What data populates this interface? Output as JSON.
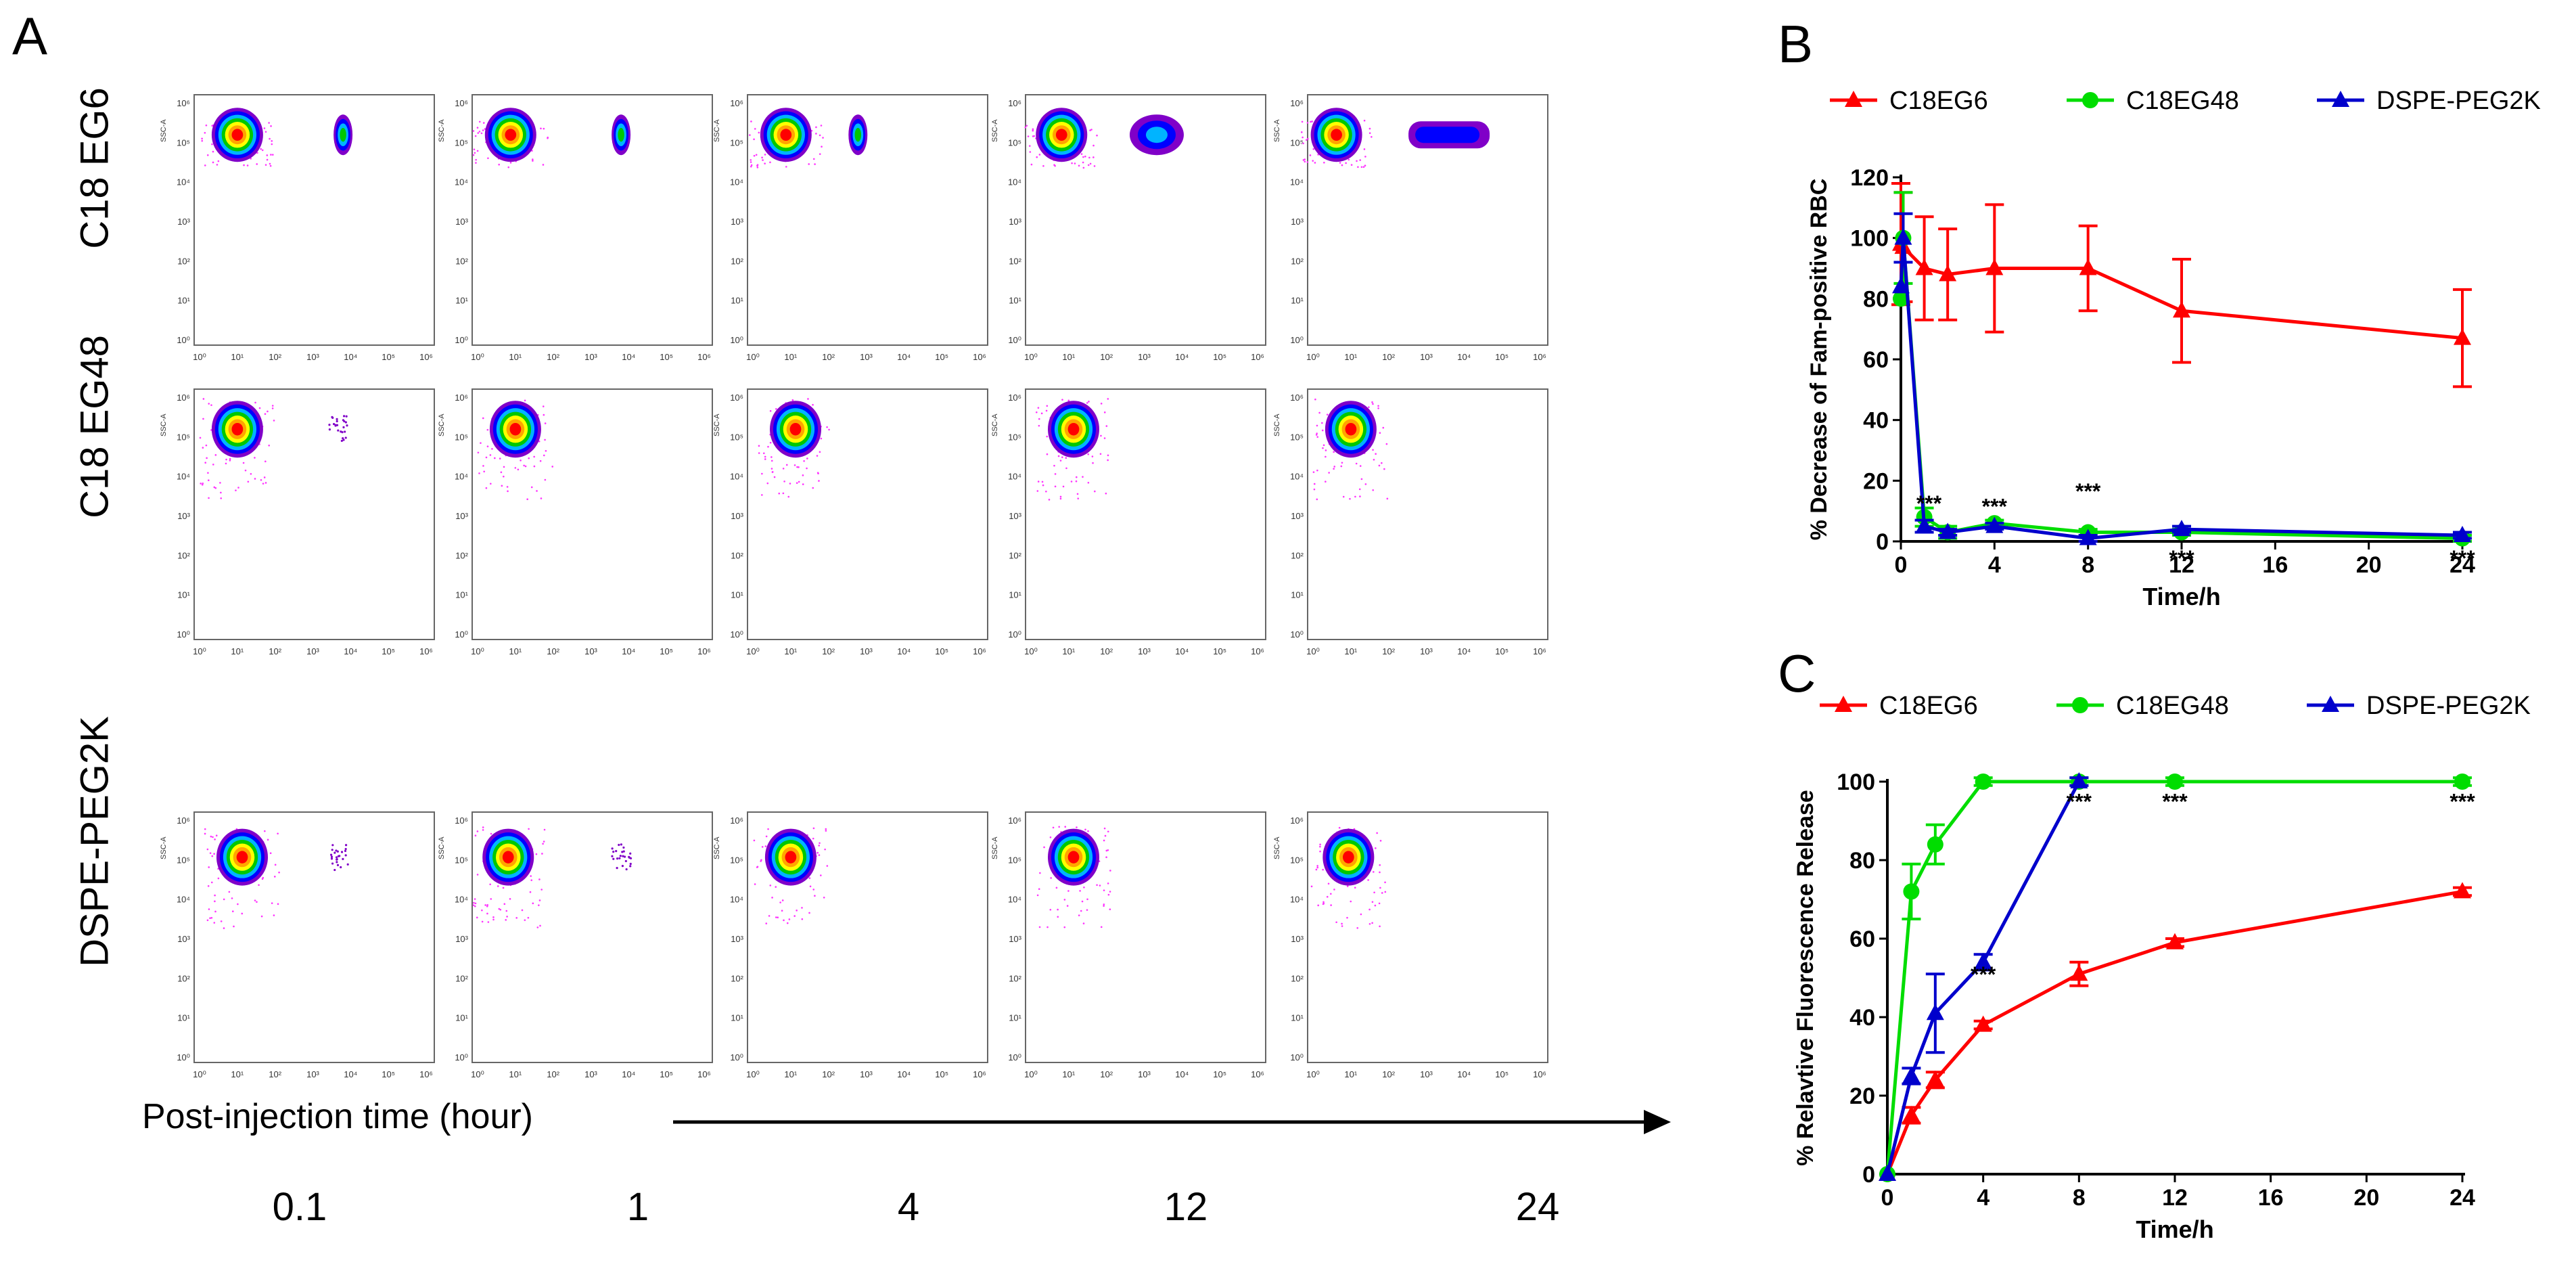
{
  "panel_a": {
    "letter": "A",
    "row_labels": [
      "C18 EG6",
      "C18 EG48",
      "DSPE-PEG2K"
    ],
    "x_axis_title": "Post-injection time (hour)",
    "times": [
      "0.1",
      "1",
      "4",
      "12",
      "24"
    ],
    "flow_ylabel": "SSC-A",
    "tick_labels": [
      "10⁰",
      "10¹",
      "10²",
      "10³",
      "10⁴",
      "10⁵",
      "10⁶"
    ],
    "colormap": [
      "#ff0000",
      "#ffa500",
      "#ffff00",
      "#00c800",
      "#00b4ff",
      "#0000ff",
      "#8000c8",
      "#ff33ff"
    ]
  },
  "chart_data": [
    {
      "id": "B",
      "letter": "B",
      "type": "line",
      "title": "",
      "xlabel": "Time/h",
      "ylabel": "% Decrease of Fam-positive RBC",
      "xlim": [
        0,
        24
      ],
      "ylim": [
        0,
        120
      ],
      "xticks": [
        0,
        4,
        8,
        12,
        16,
        20,
        24
      ],
      "yticks": [
        0,
        20,
        40,
        60,
        80,
        100,
        120
      ],
      "legend": [
        "C18EG6",
        "C18EG48",
        "DSPE-PEG2K"
      ],
      "series": [
        {
          "name": "C18EG6",
          "color": "#ff0000",
          "marker": "triangle",
          "x": [
            0,
            0.1,
            1,
            2,
            4,
            8,
            12,
            24
          ],
          "y": [
            98,
            97,
            90,
            88,
            90,
            90,
            76,
            67
          ],
          "err": [
            20,
            18,
            17,
            15,
            21,
            14,
            17,
            16
          ]
        },
        {
          "name": "C18EG48",
          "color": "#00dd00",
          "marker": "circle",
          "x": [
            0,
            0.1,
            1,
            2,
            4,
            8,
            12,
            24
          ],
          "y": [
            80,
            100,
            8,
            3,
            6,
            3,
            3,
            1
          ],
          "err": [
            0,
            15,
            3,
            2,
            1,
            1,
            1,
            1
          ]
        },
        {
          "name": "DSPE-PEG2K",
          "color": "#0000cc",
          "marker": "triangle",
          "x": [
            0,
            0.1,
            1,
            2,
            4,
            8,
            12,
            24
          ],
          "y": [
            84,
            100,
            5,
            3,
            5,
            1,
            4,
            2
          ],
          "err": [
            0,
            8,
            2,
            1,
            1,
            1,
            1,
            1
          ]
        }
      ],
      "annotations": [
        {
          "x": 1.2,
          "y": 10,
          "text": "***"
        },
        {
          "x": 4,
          "y": 9,
          "text": "***"
        },
        {
          "x": 8,
          "y": 14,
          "text": "***"
        },
        {
          "x": 12,
          "y": -8,
          "text": "***"
        },
        {
          "x": 24,
          "y": -8,
          "text": "***"
        }
      ]
    },
    {
      "id": "C",
      "letter": "C",
      "type": "line",
      "title": "",
      "xlabel": "Time/h",
      "ylabel": "% Relavtive Fluorescence Release",
      "xlim": [
        0,
        24
      ],
      "ylim": [
        0,
        100
      ],
      "xticks": [
        0,
        4,
        8,
        12,
        16,
        20,
        24
      ],
      "yticks": [
        0,
        20,
        40,
        60,
        80,
        100
      ],
      "legend": [
        "C18EG6",
        "C18EG48",
        "DSPE-PEG2K"
      ],
      "series": [
        {
          "name": "C18EG6",
          "color": "#ff0000",
          "marker": "triangle",
          "x": [
            0,
            1,
            2,
            4,
            8,
            12,
            24
          ],
          "y": [
            0,
            15,
            24,
            38,
            51,
            59,
            72
          ],
          "err": [
            0,
            2,
            2,
            1,
            3,
            1,
            1
          ]
        },
        {
          "name": "C18EG48",
          "color": "#00dd00",
          "marker": "circle",
          "x": [
            0,
            1,
            2,
            4,
            8,
            12,
            24
          ],
          "y": [
            0,
            72,
            84,
            100,
            100,
            100,
            100
          ],
          "err": [
            0,
            7,
            5,
            1,
            1,
            1,
            1
          ]
        },
        {
          "name": "DSPE-PEG2K",
          "color": "#0000cc",
          "marker": "triangle",
          "x": [
            0,
            1,
            2,
            4,
            8
          ],
          "y": [
            0,
            25,
            41,
            54,
            100
          ],
          "err": [
            0,
            2,
            10,
            2,
            1
          ]
        }
      ],
      "annotations": [
        {
          "x": 4,
          "y": 49,
          "text": "***"
        },
        {
          "x": 8,
          "y": 93,
          "text": "***"
        },
        {
          "x": 12,
          "y": 93,
          "text": "***"
        },
        {
          "x": 24,
          "y": 93,
          "text": "***"
        }
      ]
    }
  ]
}
